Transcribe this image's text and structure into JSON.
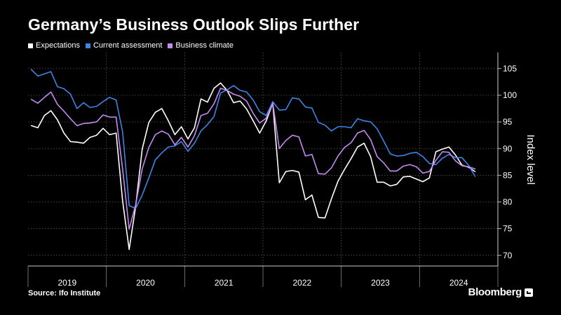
{
  "header": {
    "title": "Germany’s Business Outlook Slips Further"
  },
  "footer": {
    "source": "Source: Ifo Institute",
    "brand": "Bloomberg"
  },
  "chart_data": {
    "type": "line",
    "title": "Germany’s Business Outlook Slips Further",
    "xlabel": "",
    "ylabel": "Index level",
    "x_ticks": [
      "2019",
      "2020",
      "2021",
      "2022",
      "2023",
      "2024"
    ],
    "x_start": "2019-01",
    "x_end": "2024-06",
    "ylim": [
      68,
      108
    ],
    "y_ticks": [
      70,
      75,
      80,
      85,
      90,
      95,
      100,
      105
    ],
    "grid": true,
    "legend_position": "top-left",
    "series": [
      {
        "name": "Expectations",
        "color": "#ffffff",
        "values": [
          94.3,
          93.9,
          96.2,
          97.1,
          95.4,
          92.9,
          91.3,
          91.2,
          91.0,
          92.1,
          92.5,
          93.8,
          92.6,
          92.9,
          80.1,
          71.1,
          79.2,
          89.9,
          94.9,
          96.8,
          97.5,
          95.2,
          92.6,
          94.1,
          91.8,
          93.9,
          99.3,
          98.7,
          101.3,
          102.3,
          100.9,
          98.6,
          98.9,
          97.4,
          95.2,
          92.9,
          95.2,
          98.5,
          83.6,
          85.7,
          85.9,
          85.6,
          80.4,
          81.3,
          77.1,
          77.0,
          80.6,
          83.9,
          86.1,
          88.1,
          90.3,
          91.0,
          88.5,
          83.7,
          83.7,
          83.0,
          83.3,
          84.7,
          84.8,
          84.3,
          83.8,
          84.5,
          89.4,
          89.9,
          90.3,
          88.8,
          86.9,
          86.5,
          85.7
        ]
      },
      {
        "name": "Current assessment",
        "color": "#3d84e4",
        "values": [
          104.8,
          103.6,
          104.0,
          104.4,
          101.6,
          101.2,
          100.2,
          97.5,
          98.6,
          97.7,
          97.9,
          98.8,
          99.6,
          99.1,
          93.1,
          79.3,
          78.8,
          81.3,
          84.5,
          87.9,
          89.2,
          90.3,
          90.5,
          91.3,
          89.5,
          91.0,
          93.3,
          94.5,
          96.0,
          100.4,
          101.0,
          101.8,
          100.9,
          100.6,
          99.1,
          96.9,
          96.2,
          98.8,
          97.2,
          97.3,
          99.5,
          99.3,
          97.8,
          97.6,
          94.9,
          94.4,
          93.3,
          94.1,
          94.1,
          93.9,
          95.6,
          95.2,
          95.0,
          93.7,
          91.4,
          89.0,
          88.6,
          88.7,
          89.1,
          89.3,
          88.5,
          87.2,
          87.0,
          88.2,
          88.9,
          88.3,
          88.3,
          86.9,
          84.8
        ]
      },
      {
        "name": "Business climate",
        "color": "#c589ef",
        "values": [
          99.2,
          98.5,
          99.6,
          100.6,
          98.3,
          97.0,
          95.6,
          94.3,
          94.7,
          94.8,
          95.0,
          96.3,
          95.9,
          95.9,
          86.1,
          74.9,
          79.5,
          86.2,
          90.2,
          92.6,
          93.3,
          92.7,
          90.7,
          92.1,
          90.3,
          92.4,
          96.2,
          96.6,
          98.4,
          101.3,
          100.9,
          100.2,
          99.8,
          98.9,
          96.6,
          94.8,
          95.7,
          98.5,
          90.0,
          91.5,
          92.5,
          92.2,
          88.6,
          88.9,
          85.3,
          85.2,
          86.4,
          88.6,
          90.2,
          91.1,
          92.9,
          93.4,
          91.7,
          88.5,
          87.3,
          85.8,
          85.8,
          86.7,
          87.0,
          86.6,
          85.4,
          85.7,
          87.8,
          89.4,
          89.3,
          87.7,
          86.8,
          86.6,
          86.2
        ]
      }
    ]
  }
}
